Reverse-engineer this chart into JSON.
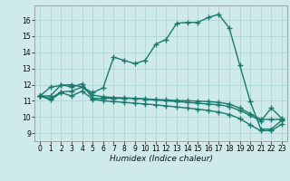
{
  "xlabel": "Humidex (Indice chaleur)",
  "bg_color": "#ceeaea",
  "line_color": "#1a7a6e",
  "grid_color": "#afd4d4",
  "xlim": [
    -0.5,
    23.5
  ],
  "ylim": [
    8.5,
    16.9
  ],
  "yticks": [
    9,
    10,
    11,
    12,
    13,
    14,
    15,
    16
  ],
  "xticks": [
    0,
    1,
    2,
    3,
    4,
    5,
    6,
    7,
    8,
    9,
    10,
    11,
    12,
    13,
    14,
    15,
    16,
    17,
    18,
    19,
    20,
    21,
    22,
    23
  ],
  "lines": [
    {
      "x": [
        0,
        1,
        2,
        3,
        4,
        5,
        6,
        7,
        8,
        9,
        10,
        11,
        12,
        13,
        14,
        15,
        16,
        17,
        18,
        19,
        20,
        21,
        22,
        23
      ],
      "y": [
        11.3,
        11.85,
        11.95,
        12.0,
        11.85,
        11.5,
        11.8,
        13.7,
        13.5,
        13.3,
        13.5,
        14.5,
        14.8,
        15.8,
        15.85,
        15.85,
        16.15,
        16.35,
        15.5,
        13.2,
        10.95,
        9.25,
        9.25,
        9.8
      ]
    },
    {
      "x": [
        0,
        1,
        2,
        3,
        4,
        5,
        6,
        7,
        8,
        9,
        10,
        11,
        12,
        13,
        14,
        15,
        16,
        17,
        18,
        19,
        20,
        21,
        22,
        23
      ],
      "y": [
        11.3,
        11.3,
        12.0,
        11.85,
        12.05,
        11.15,
        11.15,
        11.15,
        11.15,
        11.15,
        11.1,
        11.05,
        11.0,
        10.95,
        10.9,
        10.85,
        10.8,
        10.75,
        10.65,
        10.4,
        10.1,
        9.75,
        10.55,
        9.9
      ]
    },
    {
      "x": [
        0,
        1,
        2,
        3,
        4,
        5,
        6,
        7,
        8,
        9,
        10,
        11,
        12,
        13,
        14,
        15,
        16,
        17,
        18,
        19,
        20,
        21,
        22,
        23
      ],
      "y": [
        11.3,
        11.15,
        11.55,
        11.6,
        11.85,
        11.35,
        11.25,
        11.2,
        11.18,
        11.15,
        11.12,
        11.08,
        11.05,
        11.02,
        11.0,
        10.98,
        10.95,
        10.9,
        10.8,
        10.55,
        10.2,
        9.85,
        9.85,
        9.85
      ]
    },
    {
      "x": [
        0,
        1,
        2,
        3,
        4,
        5,
        6,
        7,
        8,
        9,
        10,
        11,
        12,
        13,
        14,
        15,
        16,
        17,
        18,
        19,
        20,
        21,
        22,
        23
      ],
      "y": [
        11.3,
        11.05,
        11.5,
        11.3,
        11.6,
        11.1,
        11.0,
        10.95,
        10.9,
        10.85,
        10.8,
        10.75,
        10.68,
        10.62,
        10.55,
        10.48,
        10.4,
        10.3,
        10.15,
        9.9,
        9.5,
        9.15,
        9.15,
        9.55
      ]
    }
  ],
  "marker": "+",
  "markersize": 4.0,
  "linewidth": 1.0
}
